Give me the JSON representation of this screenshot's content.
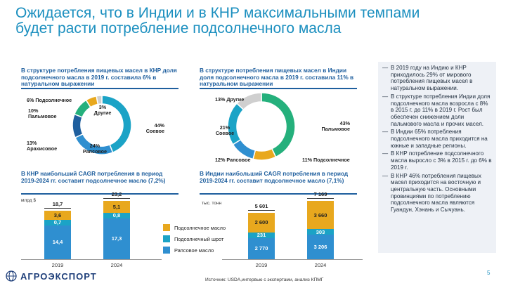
{
  "title": "Ожидается, что в Индии и в КНР максимальными темпами будет расти потребление подсолнечного масла",
  "china_share": {
    "heading": "В структуре потребления пищевых масел в КНР доля подсолнечного масла в 2019 г. составила 6% в натуральном выражении",
    "slices": [
      {
        "label": "Соевое",
        "value": 44,
        "color": "#1ba3c6"
      },
      {
        "label": "Рапсовое",
        "value": 24,
        "color": "#2f8fd0"
      },
      {
        "label": "Арахисовое",
        "value": 13,
        "color": "#1f5f9e"
      },
      {
        "label": "Пальмовое",
        "value": 10,
        "color": "#25b07c"
      },
      {
        "label": "Подсолнечное",
        "value": 6,
        "color": "#e8a81e"
      },
      {
        "label": "Другие",
        "value": 3,
        "color": "#cfcfcf"
      }
    ],
    "labels": {
      "soy_pct": "44%",
      "soy": "Соевое",
      "rape_pct": "24%",
      "rape": "Рапсовое",
      "peanut_pct": "13%",
      "peanut": "Арахисовое",
      "palm_pct": "10%",
      "palm": "Пальмовое",
      "sun": "6% Подсолнечное",
      "other_pct": "3%",
      "other": "Другие"
    }
  },
  "india_share": {
    "heading": "В структуре потребления пищевых масел в Индии доля подсолнечного масла в 2019 г. составила 11% в натуральном выражении",
    "slices": [
      {
        "label": "Пальмовое",
        "value": 43,
        "color": "#25b07c"
      },
      {
        "label": "Подсолнечное",
        "value": 11,
        "color": "#e8a81e"
      },
      {
        "label": "Рапсовое",
        "value": 12,
        "color": "#2f8fd0"
      },
      {
        "label": "Соевое",
        "value": 21,
        "color": "#1ba3c6"
      },
      {
        "label": "Другие",
        "value": 13,
        "color": "#cfcfcf"
      }
    ],
    "labels": {
      "palm_pct": "43%",
      "palm": "Пальмовое",
      "sun": "11% Подсолнечное",
      "rape": "12% Рапсовое",
      "soy_pct": "21%",
      "soy": "Соевое",
      "other": "13% Другие"
    }
  },
  "china_cagr": {
    "heading": "В КНР наибольший CAGR потребления в период 2019-2024 гг. составит подсолнечное масло (7,2%)",
    "unit": "млрд $",
    "years": [
      "2019",
      "2024"
    ],
    "totals": [
      "18,7",
      "23,2"
    ],
    "rapeseed": [
      "14,4",
      "17,3"
    ],
    "meal": [
      "0,7",
      "0,8"
    ],
    "sunflower": [
      "3,6",
      "5,1"
    ]
  },
  "india_cagr": {
    "heading": "В Индии наибольший CAGR потребления в период 2019-2024 гг. составит подсолнечное масло (7,1%)",
    "unit": "тыс. тонн",
    "years": [
      "2019",
      "2024"
    ],
    "totals": [
      "5 601",
      "7 169"
    ],
    "rapeseed": [
      "2 770",
      "3 206"
    ],
    "meal": [
      "231",
      "303"
    ],
    "sunflower": [
      "2 600",
      "3 660"
    ]
  },
  "chart_data": [
    {
      "type": "pie",
      "title": "В структуре потребления пищевых масел в КНР доля подсолнечного масла в 2019 г. составила 6% в натуральном выражении",
      "categories": [
        "Соевое",
        "Рапсовое",
        "Арахисовое",
        "Пальмовое",
        "Подсолнечное",
        "Другие"
      ],
      "values": [
        44,
        24,
        13,
        10,
        6,
        3
      ]
    },
    {
      "type": "pie",
      "title": "В структуре потребления пищевых масел в Индии доля подсолнечного масла в 2019 г. составила 11% в натуральном выражении",
      "categories": [
        "Пальмовое",
        "Подсолнечное",
        "Рапсовое",
        "Соевое",
        "Другие"
      ],
      "values": [
        43,
        11,
        12,
        21,
        13
      ]
    },
    {
      "type": "bar",
      "title": "В КНР наибольший CAGR потребления в период 2019-2024 гг. составит подсолнечное масло (7,2%)",
      "ylabel": "млрд $",
      "categories": [
        "2019",
        "2024"
      ],
      "series": [
        {
          "name": "Рапсовое масло",
          "values": [
            14.4,
            17.3
          ]
        },
        {
          "name": "Подсолнечный шрот",
          "values": [
            0.7,
            0.8
          ]
        },
        {
          "name": "Подсолнечное масло",
          "values": [
            3.6,
            5.1
          ]
        }
      ],
      "totals": [
        18.7,
        23.2
      ]
    },
    {
      "type": "bar",
      "title": "В Индии наибольший CAGR потребления в период 2019-2024 гг. составит подсолнечное масло (7,1%)",
      "ylabel": "тыс. тонн",
      "categories": [
        "2019",
        "2024"
      ],
      "series": [
        {
          "name": "Рапсовое масло",
          "values": [
            2770,
            3206
          ]
        },
        {
          "name": "Подсолнечный шрот",
          "values": [
            231,
            303
          ]
        },
        {
          "name": "Подсолнечное масло",
          "values": [
            2600,
            3660
          ]
        }
      ],
      "totals": [
        5601,
        7169
      ]
    }
  ],
  "legend": [
    {
      "label": "Подсолнечное масло",
      "color": "#e8a81e"
    },
    {
      "label": "Подсолнечный шрот",
      "color": "#1ba3c6"
    },
    {
      "label": "Рапсовое масло",
      "color": "#2f8fd0"
    }
  ],
  "right_panel": {
    "dash": "—",
    "items": [
      "В 2019 году на Индию и КНР приходилось 29% от мирового потребления пищевых масел в натуральном выражении.",
      "В структуре потребления Индии доля подсолнечного масла возросла с 8% в 2015 г. до 11% в 2019 г. Рост был обеспечен снижением доли пальмового масла и прочих масел.",
      "В Индии 65% потребления подсолнечного масла приходится на южные и западные регионы.",
      "В КНР потребление подсолнечного масла выросло с 3% в 2015 г. до 6% в 2019 г.",
      "В КНР 46% потребления пищевых масел приходится на восточную и центральную часть. Основными провинциями по потреблению подсолнечного масла являются Гуандун, Хэнань и Сычуань."
    ]
  },
  "footer": {
    "logo": "АГРОЭКСПОРТ",
    "source": "Источник: USDA,интервью с экспертами, анализ КПМГ",
    "page": "5"
  }
}
